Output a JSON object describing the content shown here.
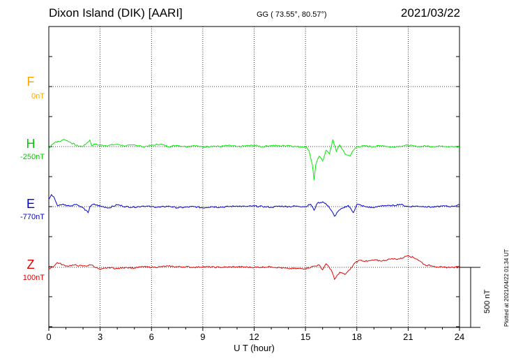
{
  "header": {
    "station": "Dixon Island (DIK)  [AARI]",
    "coords": "GG ( 73.55°,  80.57°)",
    "date": "2021/03/22"
  },
  "panel_labels": [
    {
      "name": "F",
      "offset": "0nT",
      "color": "#ffa500"
    },
    {
      "name": "H",
      "offset": "-250nT",
      "color": "#00cc00"
    },
    {
      "name": "E",
      "offset": "-770nT",
      "color": "#0000cc"
    },
    {
      "name": "Z",
      "offset": "100nT",
      "color": "#dd0000"
    }
  ],
  "scale_bar": "500 nT",
  "plot_stamp": "Plotted at 2021/04/22 01:34 UT",
  "colors": {
    "F": "#ffa500",
    "H": "#00ee00",
    "E": "#0000dd",
    "Z": "#ee0000"
  },
  "chart_data": {
    "type": "line",
    "title": "Dixon Island (DIK)  [AARI]",
    "xlabel": "U T (hour)",
    "ylabel": "",
    "xlim": [
      0,
      24
    ],
    "x_ticks": [
      0,
      3,
      6,
      9,
      12,
      15,
      18,
      21,
      24
    ],
    "grid": true,
    "series": [
      {
        "name": "H",
        "baseline": "-250nT",
        "x": [
          0,
          0.2,
          0.4,
          0.6,
          0.9,
          1.2,
          1.6,
          2.0,
          2.4,
          2.5,
          2.7,
          3.0,
          3.5,
          4.0,
          4.5,
          5.0,
          5.5,
          6.0,
          6.5,
          7.0,
          7.5,
          8.0,
          8.5,
          9.0,
          9.5,
          10.0,
          10.5,
          11.0,
          11.5,
          12.0,
          12.5,
          13.0,
          13.5,
          14.0,
          14.5,
          15.0,
          15.2,
          15.4,
          15.5,
          15.6,
          15.8,
          16.0,
          16.2,
          16.4,
          16.6,
          16.8,
          17.0,
          17.3,
          17.6,
          17.8,
          18.0,
          18.5,
          19.0,
          19.5,
          20.0,
          20.5,
          21.0,
          21.5,
          22.0,
          22.5,
          23.0,
          23.5,
          24.0
        ],
        "y": [
          -20,
          20,
          40,
          40,
          60,
          40,
          10,
          0,
          55,
          10,
          20,
          10,
          10,
          20,
          5,
          15,
          0,
          10,
          20,
          0,
          10,
          0,
          10,
          -5,
          5,
          0,
          10,
          0,
          5,
          10,
          0,
          10,
          5,
          10,
          0,
          0,
          -30,
          -150,
          -280,
          -150,
          -80,
          -120,
          -30,
          -60,
          60,
          -40,
          15,
          -60,
          -80,
          -30,
          0,
          5,
          0,
          10,
          -5,
          5,
          10,
          0,
          5,
          0,
          5,
          0,
          -5
        ]
      },
      {
        "name": "E",
        "baseline": "-770nT",
        "x": [
          0,
          0.15,
          0.3,
          0.5,
          0.8,
          1.2,
          1.6,
          2.0,
          2.3,
          2.4,
          2.6,
          3.0,
          3.5,
          4.0,
          4.5,
          5.0,
          5.5,
          6.0,
          6.5,
          7.0,
          7.5,
          8.0,
          8.5,
          9.0,
          9.5,
          10.0,
          10.5,
          11.0,
          11.5,
          12.0,
          12.5,
          13.0,
          13.5,
          14.0,
          14.5,
          15.0,
          15.3,
          15.5,
          15.7,
          16.0,
          16.3,
          16.5,
          16.7,
          16.9,
          17.2,
          17.5,
          17.8,
          18.0,
          18.5,
          19.0,
          19.5,
          20.0,
          20.5,
          21.0,
          21.5,
          22.0,
          22.5,
          23.0,
          23.5,
          24.0
        ],
        "y": [
          60,
          100,
          80,
          10,
          20,
          5,
          20,
          -10,
          -50,
          0,
          20,
          5,
          -10,
          15,
          0,
          -5,
          5,
          0,
          -5,
          5,
          -10,
          -5,
          0,
          -10,
          0,
          -5,
          0,
          5,
          0,
          5,
          0,
          -5,
          5,
          0,
          5,
          0,
          20,
          -30,
          30,
          40,
          10,
          -30,
          -80,
          -40,
          -10,
          10,
          -50,
          20,
          0,
          -10,
          10,
          5,
          20,
          0,
          5,
          0,
          -5,
          5,
          0,
          15
        ]
      },
      {
        "name": "Z",
        "baseline": "100nT",
        "x": [
          0,
          0.3,
          0.5,
          1.0,
          1.5,
          2.0,
          2.5,
          3.0,
          3.5,
          4.0,
          4.5,
          5.0,
          5.5,
          6.0,
          6.5,
          7.0,
          7.5,
          8.0,
          8.5,
          9.0,
          10.0,
          11.0,
          12.0,
          13.0,
          14.0,
          15.0,
          15.5,
          15.8,
          16.0,
          16.2,
          16.5,
          16.7,
          17.0,
          17.3,
          17.6,
          17.9,
          18.2,
          18.6,
          19.0,
          19.5,
          20.0,
          20.5,
          21.0,
          21.5,
          22.0,
          22.5,
          23.0,
          23.5,
          24.0
        ],
        "y": [
          -10,
          10,
          40,
          10,
          20,
          10,
          20,
          -20,
          0,
          -10,
          0,
          -5,
          5,
          0,
          5,
          10,
          5,
          5,
          0,
          5,
          0,
          5,
          0,
          5,
          -10,
          -10,
          10,
          20,
          -20,
          30,
          -20,
          -100,
          -40,
          -60,
          -20,
          40,
          60,
          50,
          60,
          55,
          70,
          70,
          100,
          70,
          20,
          10,
          0,
          0,
          0
        ]
      }
    ]
  }
}
